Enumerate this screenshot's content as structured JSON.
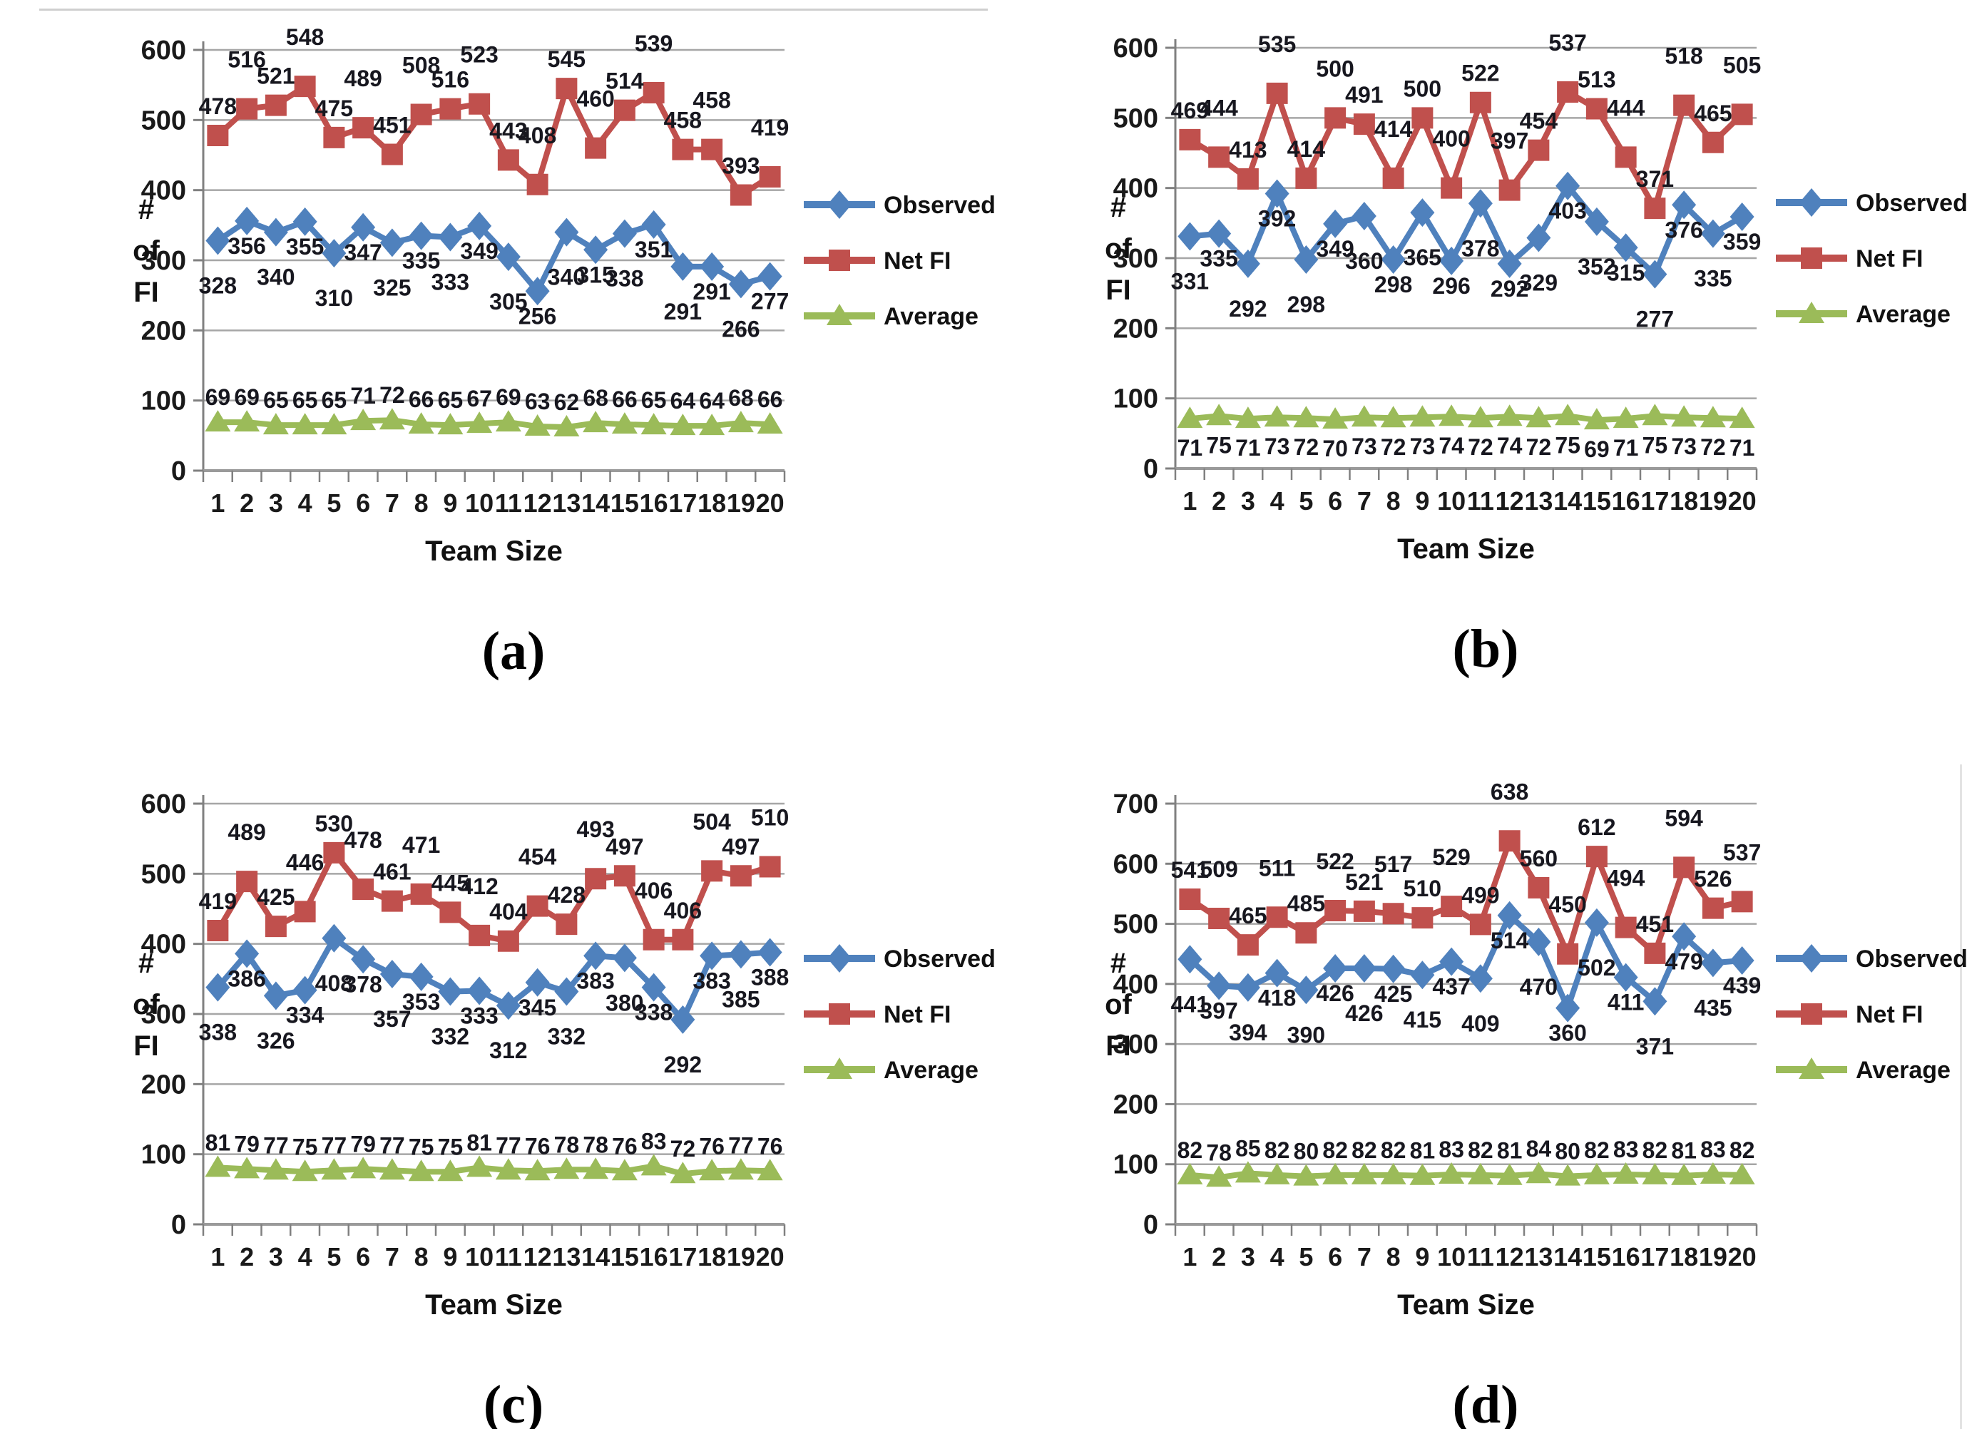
{
  "figure": {
    "captions": [
      "(a)",
      "(b)",
      "(c)",
      "(d)"
    ],
    "styles": {
      "Observed": {
        "color": "#4F81BD",
        "marker": "diamond"
      },
      "Net FI": {
        "color": "#C0504D",
        "marker": "square"
      },
      "Average": {
        "color": "#9BBB59",
        "marker": "triangle"
      }
    },
    "grid_color": "#A6A6A6",
    "axis_color": "#808080",
    "background": "#FFFFFF"
  },
  "chart_data": [
    {
      "panel": "a",
      "type": "line",
      "title": "",
      "xlabel": "Team Size",
      "ylabel": "# of FI",
      "x": [
        1,
        2,
        3,
        4,
        5,
        6,
        7,
        8,
        9,
        10,
        11,
        12,
        13,
        14,
        15,
        16,
        17,
        18,
        19,
        20
      ],
      "ylim": [
        0,
        600
      ],
      "yticks": [
        0,
        100,
        200,
        300,
        400,
        500,
        600
      ],
      "grid": true,
      "legend_position": "right",
      "series": [
        {
          "name": "Observed",
          "label_side": "below",
          "label_mode": "stagger",
          "values": [
            328,
            356,
            340,
            355,
            310,
            347,
            325,
            335,
            333,
            349,
            305,
            256,
            340,
            315,
            338,
            351,
            291,
            291,
            266,
            277
          ]
        },
        {
          "name": "Net FI",
          "label_side": "above",
          "label_mode": "stagger",
          "values": [
            478,
            516,
            521,
            548,
            475,
            489,
            451,
            508,
            516,
            523,
            443,
            408,
            545,
            460,
            514,
            539,
            458,
            458,
            393,
            419
          ]
        },
        {
          "name": "Average",
          "label_side": "above",
          "label_mode": "flat",
          "values": [
            69,
            69,
            65,
            65,
            65,
            71,
            72,
            66,
            65,
            67,
            69,
            63,
            62,
            68,
            66,
            65,
            64,
            64,
            68,
            66
          ]
        }
      ]
    },
    {
      "panel": "b",
      "type": "line",
      "title": "",
      "xlabel": "Team Size",
      "ylabel": "# of FI",
      "x": [
        1,
        2,
        3,
        4,
        5,
        6,
        7,
        8,
        9,
        10,
        11,
        12,
        13,
        14,
        15,
        16,
        17,
        18,
        19,
        20
      ],
      "ylim": [
        0,
        600
      ],
      "yticks": [
        0,
        100,
        200,
        300,
        400,
        500,
        600
      ],
      "grid": true,
      "legend_position": "right",
      "series": [
        {
          "name": "Observed",
          "label_side": "below",
          "label_mode": "stagger",
          "values": [
            331,
            335,
            292,
            392,
            298,
            349,
            360,
            298,
            365,
            296,
            378,
            292,
            329,
            403,
            352,
            315,
            277,
            376,
            335,
            359
          ]
        },
        {
          "name": "Net FI",
          "label_side": "above",
          "label_mode": "stagger",
          "values": [
            469,
            444,
            413,
            535,
            414,
            500,
            491,
            414,
            500,
            400,
            522,
            397,
            454,
            537,
            513,
            444,
            371,
            518,
            465,
            505
          ]
        },
        {
          "name": "Average",
          "label_side": "below",
          "label_mode": "flat",
          "values": [
            71,
            75,
            71,
            73,
            72,
            70,
            73,
            72,
            73,
            74,
            72,
            74,
            72,
            75,
            69,
            71,
            75,
            73,
            72,
            71
          ]
        }
      ]
    },
    {
      "panel": "c",
      "type": "line",
      "title": "",
      "xlabel": "Team Size",
      "ylabel": "# of FI",
      "x": [
        1,
        2,
        3,
        4,
        5,
        6,
        7,
        8,
        9,
        10,
        11,
        12,
        13,
        14,
        15,
        16,
        17,
        18,
        19,
        20
      ],
      "ylim": [
        0,
        600
      ],
      "yticks": [
        0,
        100,
        200,
        300,
        400,
        500,
        600
      ],
      "grid": true,
      "legend_position": "right",
      "series": [
        {
          "name": "Observed",
          "label_side": "below",
          "label_mode": "stagger",
          "values": [
            338,
            386,
            326,
            334,
            408,
            378,
            357,
            353,
            332,
            333,
            312,
            345,
            332,
            383,
            380,
            338,
            292,
            383,
            385,
            388
          ]
        },
        {
          "name": "Net FI",
          "label_side": "above",
          "label_mode": "stagger",
          "values": [
            419,
            489,
            425,
            446,
            530,
            478,
            461,
            471,
            445,
            412,
            404,
            454,
            428,
            493,
            497,
            406,
            406,
            504,
            497,
            510
          ]
        },
        {
          "name": "Average",
          "label_side": "above",
          "label_mode": "flat",
          "values": [
            81,
            79,
            77,
            75,
            77,
            79,
            77,
            75,
            75,
            81,
            77,
            76,
            78,
            78,
            76,
            83,
            72,
            76,
            77,
            76
          ]
        }
      ]
    },
    {
      "panel": "d",
      "type": "line",
      "title": "",
      "xlabel": "Team Size",
      "ylabel": "# of FI",
      "x": [
        1,
        2,
        3,
        4,
        5,
        6,
        7,
        8,
        9,
        10,
        11,
        12,
        13,
        14,
        15,
        16,
        17,
        18,
        19,
        20
      ],
      "ylim": [
        0,
        700
      ],
      "yticks": [
        0,
        100,
        200,
        300,
        400,
        500,
        600,
        700
      ],
      "grid": true,
      "legend_position": "right",
      "series": [
        {
          "name": "Observed",
          "label_side": "below",
          "label_mode": "stagger",
          "values": [
            441,
            397,
            394,
            418,
            390,
            426,
            426,
            425,
            415,
            437,
            409,
            514,
            470,
            360,
            502,
            411,
            371,
            479,
            435,
            439
          ]
        },
        {
          "name": "Net FI",
          "label_side": "above",
          "label_mode": "stagger",
          "values": [
            541,
            509,
            465,
            511,
            485,
            522,
            521,
            517,
            510,
            529,
            499,
            638,
            560,
            450,
            612,
            494,
            451,
            594,
            526,
            537
          ]
        },
        {
          "name": "Average",
          "label_side": "above",
          "label_mode": "flat",
          "values": [
            82,
            78,
            85,
            82,
            80,
            82,
            82,
            82,
            81,
            83,
            82,
            81,
            84,
            80,
            82,
            83,
            82,
            81,
            83,
            82
          ]
        }
      ]
    }
  ]
}
